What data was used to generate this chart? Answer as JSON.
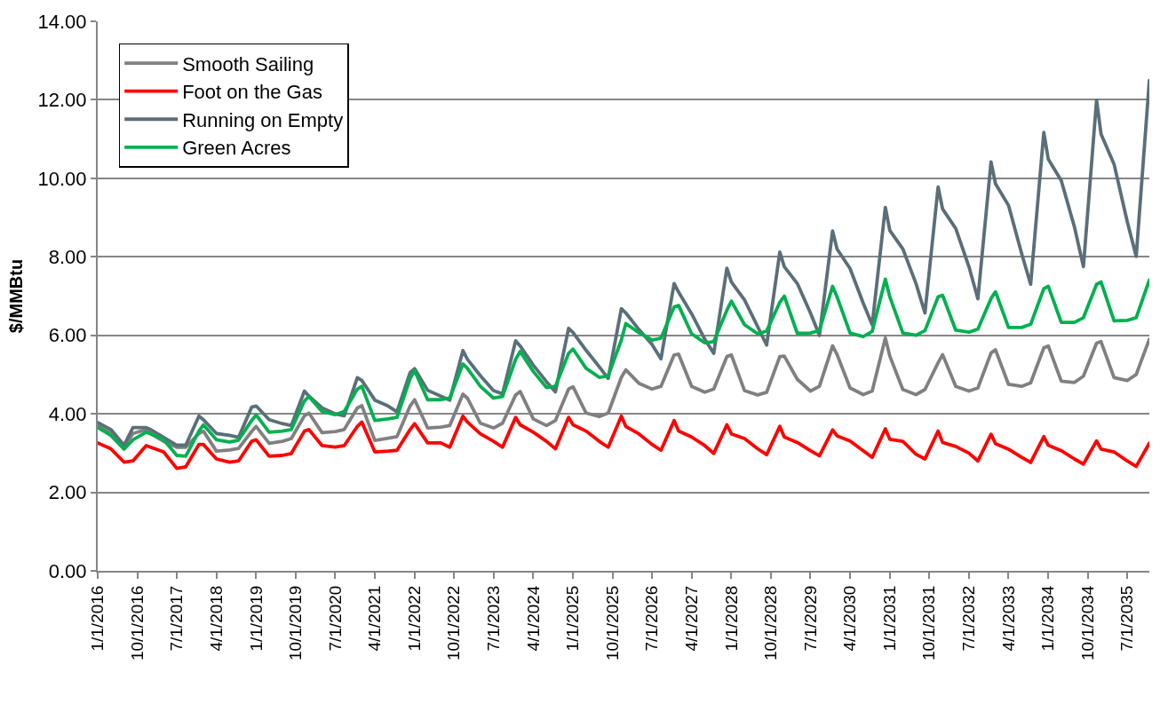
{
  "chart_data": {
    "type": "line",
    "ylabel": "$/MMBtu",
    "x": [
      "2016-01",
      "2016-04",
      "2016-07",
      "2016-09",
      "2016-12",
      "2017-01",
      "2017-04",
      "2017-07",
      "2017-09",
      "2017-12",
      "2018-01",
      "2018-04",
      "2018-07",
      "2018-09",
      "2018-12",
      "2019-01",
      "2019-04",
      "2019-07",
      "2019-09",
      "2019-12",
      "2020-01",
      "2020-04",
      "2020-07",
      "2020-09",
      "2020-12",
      "2021-01",
      "2021-04",
      "2021-07",
      "2021-09",
      "2021-12",
      "2022-01",
      "2022-04",
      "2022-07",
      "2022-09",
      "2022-12",
      "2023-01",
      "2023-04",
      "2023-07",
      "2023-09",
      "2023-12",
      "2024-01",
      "2024-04",
      "2024-07",
      "2024-09",
      "2024-12",
      "2025-01",
      "2025-04",
      "2025-07",
      "2025-09",
      "2025-12",
      "2026-01",
      "2026-04",
      "2026-07",
      "2026-09",
      "2026-12",
      "2027-01",
      "2027-04",
      "2027-07",
      "2027-09",
      "2027-12",
      "2028-01",
      "2028-04",
      "2028-07",
      "2028-09",
      "2028-12",
      "2029-01",
      "2029-04",
      "2029-07",
      "2029-09",
      "2029-12",
      "2030-01",
      "2030-04",
      "2030-07",
      "2030-09",
      "2030-12",
      "2031-01",
      "2031-04",
      "2031-07",
      "2031-09",
      "2031-12",
      "2032-01",
      "2032-04",
      "2032-07",
      "2032-09",
      "2032-12",
      "2033-01",
      "2033-04",
      "2033-07",
      "2033-09",
      "2033-12",
      "2034-01",
      "2034-04",
      "2034-07",
      "2034-09",
      "2034-12",
      "2035-01",
      "2035-04",
      "2035-07",
      "2035-09",
      "2035-12"
    ],
    "series": [
      {
        "name": "Smooth Sailing",
        "color": "#808080",
        "values": [
          3.7,
          3.5,
          3.15,
          3.5,
          3.6,
          3.5,
          3.3,
          3.15,
          3.15,
          3.5,
          3.56,
          3.05,
          3.08,
          3.12,
          3.55,
          3.68,
          3.25,
          3.3,
          3.37,
          3.95,
          4.02,
          3.52,
          3.55,
          3.6,
          4.15,
          4.21,
          3.32,
          3.38,
          3.42,
          4.2,
          4.36,
          3.64,
          3.66,
          3.7,
          4.5,
          4.4,
          3.76,
          3.64,
          3.76,
          4.48,
          4.57,
          3.87,
          3.7,
          3.83,
          4.63,
          4.69,
          4.02,
          3.93,
          4.02,
          4.93,
          5.12,
          4.78,
          4.63,
          4.7,
          5.5,
          5.52,
          4.7,
          4.55,
          4.63,
          5.46,
          5.5,
          4.59,
          4.48,
          4.55,
          5.46,
          5.47,
          4.88,
          4.58,
          4.7,
          5.73,
          5.51,
          4.66,
          4.49,
          4.58,
          5.93,
          5.47,
          4.62,
          4.49,
          4.62,
          5.3,
          5.51,
          4.7,
          4.58,
          4.66,
          5.55,
          5.63,
          4.75,
          4.7,
          4.79,
          5.68,
          5.73,
          4.83,
          4.8,
          4.96,
          5.8,
          5.84,
          4.92,
          4.85,
          5.0,
          5.9
        ]
      },
      {
        "name": "Foot on the Gas",
        "color": "#ff0000",
        "values": [
          3.26,
          3.11,
          2.77,
          2.8,
          3.19,
          3.15,
          3.03,
          2.61,
          2.65,
          3.22,
          3.22,
          2.85,
          2.77,
          2.8,
          3.3,
          3.34,
          2.92,
          2.94,
          2.99,
          3.56,
          3.6,
          3.19,
          3.15,
          3.19,
          3.68,
          3.79,
          3.03,
          3.05,
          3.07,
          3.6,
          3.75,
          3.26,
          3.26,
          3.15,
          3.94,
          3.79,
          3.49,
          3.3,
          3.15,
          3.91,
          3.72,
          3.53,
          3.3,
          3.11,
          3.91,
          3.72,
          3.56,
          3.3,
          3.15,
          3.94,
          3.68,
          3.49,
          3.22,
          3.07,
          3.83,
          3.56,
          3.41,
          3.19,
          2.99,
          3.72,
          3.49,
          3.37,
          3.11,
          2.96,
          3.68,
          3.41,
          3.27,
          3.06,
          2.93,
          3.59,
          3.44,
          3.31,
          3.06,
          2.89,
          3.62,
          3.35,
          3.3,
          2.97,
          2.85,
          3.56,
          3.27,
          3.17,
          3.0,
          2.8,
          3.48,
          3.24,
          3.1,
          2.89,
          2.76,
          3.42,
          3.2,
          3.06,
          2.85,
          2.72,
          3.31,
          3.1,
          3.03,
          2.8,
          2.66,
          3.25
        ]
      },
      {
        "name": "Running on Empty",
        "color": "#5a6f78",
        "values": [
          3.78,
          3.6,
          3.2,
          3.65,
          3.65,
          3.6,
          3.4,
          3.2,
          3.2,
          3.94,
          3.85,
          3.5,
          3.45,
          3.4,
          4.17,
          4.2,
          3.85,
          3.75,
          3.7,
          4.58,
          4.45,
          4.15,
          4.0,
          3.95,
          4.92,
          4.85,
          4.35,
          4.2,
          4.05,
          5.05,
          5.15,
          4.6,
          4.45,
          4.35,
          5.61,
          5.39,
          4.97,
          4.59,
          4.51,
          5.86,
          5.73,
          5.24,
          4.82,
          4.56,
          6.18,
          6.07,
          5.62,
          5.2,
          4.9,
          6.68,
          6.57,
          6.15,
          5.77,
          5.4,
          7.32,
          7.1,
          6.55,
          5.9,
          5.54,
          7.71,
          7.36,
          6.9,
          6.22,
          5.75,
          8.12,
          7.75,
          7.32,
          6.57,
          6.0,
          8.66,
          8.2,
          7.7,
          6.82,
          6.27,
          9.26,
          8.67,
          8.2,
          7.32,
          6.57,
          9.78,
          9.22,
          8.72,
          7.75,
          6.93,
          10.42,
          9.86,
          9.31,
          8.08,
          7.3,
          11.17,
          10.49,
          9.94,
          8.76,
          7.75,
          11.99,
          11.13,
          10.36,
          8.9,
          8.01,
          12.49
        ]
      },
      {
        "name": "Green Acres",
        "color": "#00b050",
        "values": [
          3.65,
          3.45,
          3.1,
          3.34,
          3.53,
          3.49,
          3.34,
          2.94,
          2.92,
          3.56,
          3.72,
          3.34,
          3.28,
          3.33,
          3.83,
          3.97,
          3.53,
          3.56,
          3.6,
          4.33,
          4.44,
          4.06,
          3.98,
          4.06,
          4.63,
          4.7,
          3.83,
          3.87,
          3.91,
          4.9,
          5.1,
          4.36,
          4.36,
          4.4,
          5.27,
          5.16,
          4.7,
          4.4,
          4.44,
          5.39,
          5.59,
          5.08,
          4.67,
          4.7,
          5.54,
          5.65,
          5.16,
          4.93,
          4.97,
          5.88,
          6.3,
          6.07,
          5.88,
          5.93,
          6.72,
          6.76,
          6.04,
          5.81,
          5.84,
          6.64,
          6.87,
          6.27,
          6.04,
          6.11,
          6.84,
          7.0,
          6.05,
          6.06,
          6.12,
          7.25,
          6.98,
          6.06,
          5.97,
          6.1,
          7.43,
          6.98,
          6.06,
          6.0,
          6.12,
          6.98,
          7.02,
          6.13,
          6.08,
          6.16,
          6.94,
          7.11,
          6.2,
          6.2,
          6.28,
          7.19,
          7.25,
          6.33,
          6.33,
          6.45,
          7.3,
          7.36,
          6.37,
          6.38,
          6.45,
          7.41
        ]
      }
    ],
    "xlim": [
      "2016-01",
      "2035-12"
    ],
    "xticks": [
      {
        "value": "2016-01-01",
        "label": "1/1/2016"
      },
      {
        "value": "2016-10-01",
        "label": "10/1/2016"
      },
      {
        "value": "2017-07-01",
        "label": "7/1/2017"
      },
      {
        "value": "2018-04-01",
        "label": "4/1/2018"
      },
      {
        "value": "2019-01-01",
        "label": "1/1/2019"
      },
      {
        "value": "2019-10-01",
        "label": "10/1/2019"
      },
      {
        "value": "2020-07-01",
        "label": "7/1/2020"
      },
      {
        "value": "2021-04-01",
        "label": "4/1/2021"
      },
      {
        "value": "2022-01-01",
        "label": "1/1/2022"
      },
      {
        "value": "2022-10-01",
        "label": "10/1/2022"
      },
      {
        "value": "2023-07-01",
        "label": "7/1/2023"
      },
      {
        "value": "2024-04-01",
        "label": "4/1/2024"
      },
      {
        "value": "2025-01-01",
        "label": "1/1/2025"
      },
      {
        "value": "2025-10-01",
        "label": "10/1/2025"
      },
      {
        "value": "2026-07-01",
        "label": "7/1/2026"
      },
      {
        "value": "2027-04-01",
        "label": "4/1/2027"
      },
      {
        "value": "2028-01-01",
        "label": "1/1/2028"
      },
      {
        "value": "2028-10-01",
        "label": "10/1/2028"
      },
      {
        "value": "2029-07-01",
        "label": "7/1/2029"
      },
      {
        "value": "2030-04-01",
        "label": "4/1/2030"
      },
      {
        "value": "2031-01-01",
        "label": "1/1/2031"
      },
      {
        "value": "2031-10-01",
        "label": "10/1/2031"
      },
      {
        "value": "2032-07-01",
        "label": "7/1/2032"
      },
      {
        "value": "2033-04-01",
        "label": "4/1/2033"
      },
      {
        "value": "2034-01-01",
        "label": "1/1/2034"
      },
      {
        "value": "2034-10-01",
        "label": "10/1/2034"
      },
      {
        "value": "2035-07-01",
        "label": "7/1/2035"
      }
    ],
    "ylim": [
      0,
      14
    ],
    "yticks": [
      {
        "value": 0,
        "label": "0.00"
      },
      {
        "value": 2,
        "label": "2.00"
      },
      {
        "value": 4,
        "label": "4.00"
      },
      {
        "value": 6,
        "label": "6.00"
      },
      {
        "value": 8,
        "label": "8.00"
      },
      {
        "value": 10,
        "label": "10.00"
      },
      {
        "value": 12,
        "label": "12.00"
      },
      {
        "value": 14,
        "label": "14.00"
      }
    ],
    "grid": "y",
    "legend": "top left",
    "line_style": "solid"
  }
}
